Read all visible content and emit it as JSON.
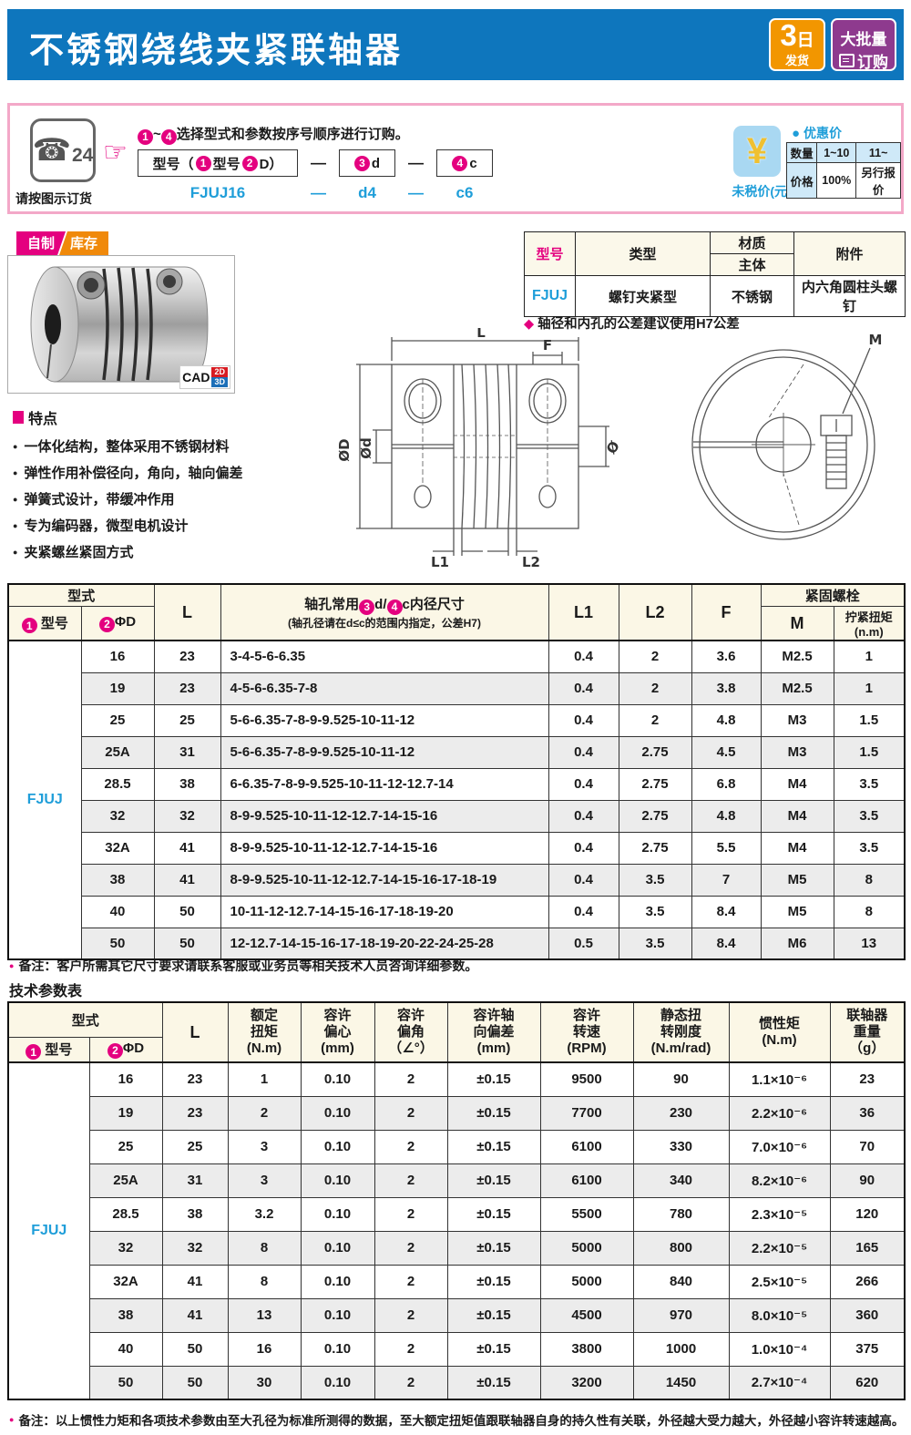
{
  "header": {
    "title": "不锈钢绕线夹紧联轴器",
    "badge_days_big": "3",
    "badge_days_unit": "日",
    "badge_days_small": "发货",
    "badge_bulk_line1": "大批量",
    "badge_bulk_line2": "订购"
  },
  "order": {
    "phone_number": "24",
    "phone_caption": "请按图示订货",
    "num1": "1",
    "tilde": "~",
    "num4": "4",
    "instruction": "选择型式和参数按序号顺序进行订购。",
    "box1_pre": "型号（",
    "box1_n1": "1",
    "box1_mid": "型号 ",
    "box1_n2": "2",
    "box1_post": "D）",
    "dash": "—",
    "box2_n": "3",
    "box2_label": "d",
    "box3_n": "4",
    "box3_label": "c",
    "example_model": "FJUJ16",
    "example_d": "d4",
    "example_c": "c6",
    "yen": "¥",
    "yen_caption": "未税价(元)",
    "price_dot": "●",
    "price_title": "优惠价",
    "price_table": {
      "headers": [
        "数量",
        "1~10",
        "11~"
      ],
      "row": [
        "价格",
        "100%",
        "另行报价"
      ]
    }
  },
  "product": {
    "tag_self": "自制",
    "tag_stock": "库存",
    "cad": "CAD",
    "cad_2d": "2D",
    "cad_3d": "3D"
  },
  "spec_table": {
    "h_model": "型号",
    "h_type": "类型",
    "h_material": "材质",
    "h_body": "主体",
    "h_accessory": "附件",
    "model": "FJUJ",
    "type": "螺钉夹紧型",
    "material": "不锈钢",
    "accessory": "内六角圆柱头螺钉",
    "note": "轴径和内孔的公差建议使用H7公差"
  },
  "features": {
    "title": "特点",
    "items": [
      "一体化结构，整体采用不锈钢材料",
      "弹性作用补偿径向，角向，轴向偏差",
      "弹簧式设计，带缓冲作用",
      "专为编码器，微型电机设计",
      "夹紧螺丝紧固方式"
    ]
  },
  "drawing": {
    "labels": {
      "L": "L",
      "F": "F",
      "phiD": "ØD",
      "phid": "Ød",
      "L1": "L1",
      "L2": "L2",
      "phi": "Ø",
      "M": "M"
    }
  },
  "table1": {
    "series": "FJUJ",
    "h_type": "型式",
    "h_num1": "1",
    "h_model": "型号",
    "h_num2": "2",
    "h_dia": "ΦD",
    "h_L": "L",
    "h_bore_pre": "轴孔常用",
    "h_bore_n3": "3",
    "h_bore_d": "d/",
    "h_bore_n4": "4",
    "h_bore_c": "c",
    "h_bore_post": "内径尺寸",
    "h_bore_sub": "(轴孔径请在d≤c的范围内指定，公差H7)",
    "h_L1": "L1",
    "h_L2": "L2",
    "h_F": "F",
    "h_bolt": "紧固螺栓",
    "h_M": "M",
    "h_torque": "拧紧扭矩(n.m)",
    "rows": [
      [
        "16",
        "23",
        "3-4-5-6-6.35",
        "0.4",
        "2",
        "3.6",
        "M2.5",
        "1"
      ],
      [
        "19",
        "23",
        "4-5-6-6.35-7-8",
        "0.4",
        "2",
        "3.8",
        "M2.5",
        "1"
      ],
      [
        "25",
        "25",
        "5-6-6.35-7-8-9-9.525-10-11-12",
        "0.4",
        "2",
        "4.8",
        "M3",
        "1.5"
      ],
      [
        "25A",
        "31",
        "5-6-6.35-7-8-9-9.525-10-11-12",
        "0.4",
        "2.75",
        "4.5",
        "M3",
        "1.5"
      ],
      [
        "28.5",
        "38",
        "6-6.35-7-8-9-9.525-10-11-12-12.7-14",
        "0.4",
        "2.75",
        "6.8",
        "M4",
        "3.5"
      ],
      [
        "32",
        "32",
        "8-9-9.525-10-11-12-12.7-14-15-16",
        "0.4",
        "2.75",
        "4.8",
        "M4",
        "3.5"
      ],
      [
        "32A",
        "41",
        "8-9-9.525-10-11-12-12.7-14-15-16",
        "0.4",
        "2.75",
        "5.5",
        "M4",
        "3.5"
      ],
      [
        "38",
        "41",
        "8-9-9.525-10-11-12-12.7-14-15-16-17-18-19",
        "0.4",
        "3.5",
        "7",
        "M5",
        "8"
      ],
      [
        "40",
        "50",
        "10-11-12-12.7-14-15-16-17-18-19-20",
        "0.4",
        "3.5",
        "8.4",
        "M5",
        "8"
      ],
      [
        "50",
        "50",
        "12-12.7-14-15-16-17-18-19-20-22-24-25-28",
        "0.5",
        "3.5",
        "8.4",
        "M6",
        "13"
      ]
    ],
    "note": "备注：客户所需其它尺寸要求请联系客服或业务员等相关技术人员咨询详细参数。"
  },
  "table2": {
    "title": "技术参数表",
    "series": "FJUJ",
    "h_type": "型式",
    "h_num1": "1",
    "h_model": "型号",
    "h_num2": "2",
    "h_dia": "ΦD",
    "h_L": "L",
    "headers": [
      "额定\n扭矩\n(N.m)",
      "容许\n偏心\n(mm)",
      "容许\n偏角\n（∠°）",
      "容许轴\n向偏差\n(mm)",
      "容许\n转速\n(RPM)",
      "静态扭\n转刚度\n(N.m/rad)",
      "惯性矩\n(N.m)",
      "联轴器\n重量\n（g）"
    ],
    "rows": [
      [
        "16",
        "23",
        "1",
        "0.10",
        "2",
        "±0.15",
        "9500",
        "90",
        "1.1×10⁻⁶",
        "23"
      ],
      [
        "19",
        "23",
        "2",
        "0.10",
        "2",
        "±0.15",
        "7700",
        "230",
        "2.2×10⁻⁶",
        "36"
      ],
      [
        "25",
        "25",
        "3",
        "0.10",
        "2",
        "±0.15",
        "6100",
        "330",
        "7.0×10⁻⁶",
        "70"
      ],
      [
        "25A",
        "31",
        "3",
        "0.10",
        "2",
        "±0.15",
        "6100",
        "340",
        "8.2×10⁻⁶",
        "90"
      ],
      [
        "28.5",
        "38",
        "3.2",
        "0.10",
        "2",
        "±0.15",
        "5500",
        "780",
        "2.3×10⁻⁵",
        "120"
      ],
      [
        "32",
        "32",
        "8",
        "0.10",
        "2",
        "±0.15",
        "5000",
        "800",
        "2.2×10⁻⁵",
        "165"
      ],
      [
        "32A",
        "41",
        "8",
        "0.10",
        "2",
        "±0.15",
        "5000",
        "840",
        "2.5×10⁻⁵",
        "266"
      ],
      [
        "38",
        "41",
        "13",
        "0.10",
        "2",
        "±0.15",
        "4500",
        "970",
        "8.0×10⁻⁵",
        "360"
      ],
      [
        "40",
        "50",
        "16",
        "0.10",
        "2",
        "±0.15",
        "3800",
        "1000",
        "1.0×10⁻⁴",
        "375"
      ],
      [
        "50",
        "50",
        "30",
        "0.10",
        "2",
        "±0.15",
        "3200",
        "1450",
        "2.7×10⁻⁴",
        "620"
      ]
    ],
    "note": "备注：以上惯性力矩和各项技术参数由至大孔径为标准所测得的数据，至大额定扭矩值跟联轴器自身的持久性有关联，外径越大受力越大，外径越小容许转速越高。"
  }
}
